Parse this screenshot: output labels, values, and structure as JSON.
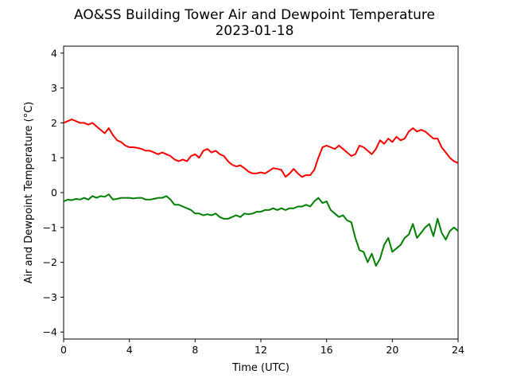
{
  "chart_data": {
    "type": "line",
    "title": "AO&SS Building Tower Air and Dewpoint Temperature",
    "subtitle": "2023-01-18",
    "xlabel": "Time (UTC)",
    "ylabel": "Air and Dewpoint Temperature (°C)",
    "xlim": [
      0,
      24
    ],
    "ylim": [
      -4.2,
      4.2
    ],
    "xticks": [
      0,
      4,
      8,
      12,
      16,
      20,
      24
    ],
    "yticks": [
      -4,
      -3,
      -2,
      -1,
      0,
      1,
      2,
      3,
      4
    ],
    "grid": false,
    "series": [
      {
        "color": "#ff0000",
        "x": [
          0,
          0.25,
          0.5,
          0.75,
          1.0,
          1.25,
          1.5,
          1.75,
          2.0,
          2.25,
          2.5,
          2.75,
          3.0,
          3.25,
          3.5,
          3.75,
          4.0,
          4.25,
          4.5,
          4.75,
          5.0,
          5.25,
          5.5,
          5.75,
          6.0,
          6.25,
          6.5,
          6.75,
          7.0,
          7.25,
          7.5,
          7.75,
          8.0,
          8.25,
          8.5,
          8.75,
          9.0,
          9.25,
          9.5,
          9.75,
          10.0,
          10.25,
          10.5,
          10.75,
          11.0,
          11.25,
          11.5,
          11.75,
          12.0,
          12.25,
          12.5,
          12.75,
          13.0,
          13.25,
          13.5,
          13.75,
          14.0,
          14.25,
          14.5,
          14.75,
          15.0,
          15.25,
          15.5,
          15.75,
          16.0,
          16.25,
          16.5,
          16.75,
          17.0,
          17.25,
          17.5,
          17.75,
          18.0,
          18.25,
          18.5,
          18.75,
          19.0,
          19.25,
          19.5,
          19.75,
          20.0,
          20.25,
          20.5,
          20.75,
          21.0,
          21.25,
          21.5,
          21.75,
          22.0,
          22.25,
          22.5,
          22.75,
          23.0,
          23.25,
          23.5,
          23.75,
          24.0
        ],
        "values": [
          2.0,
          2.05,
          2.1,
          2.05,
          2.0,
          2.0,
          1.95,
          2.0,
          1.9,
          1.8,
          1.7,
          1.85,
          1.65,
          1.5,
          1.45,
          1.35,
          1.3,
          1.3,
          1.28,
          1.25,
          1.2,
          1.2,
          1.15,
          1.1,
          1.15,
          1.1,
          1.05,
          0.95,
          0.9,
          0.95,
          0.9,
          1.05,
          1.1,
          1.0,
          1.2,
          1.25,
          1.15,
          1.2,
          1.1,
          1.05,
          0.9,
          0.8,
          0.75,
          0.78,
          0.7,
          0.6,
          0.55,
          0.55,
          0.58,
          0.55,
          0.62,
          0.7,
          0.68,
          0.65,
          0.45,
          0.55,
          0.68,
          0.55,
          0.45,
          0.5,
          0.5,
          0.65,
          1.0,
          1.3,
          1.35,
          1.3,
          1.25,
          1.35,
          1.25,
          1.15,
          1.05,
          1.1,
          1.35,
          1.3,
          1.2,
          1.1,
          1.25,
          1.5,
          1.4,
          1.55,
          1.45,
          1.6,
          1.5,
          1.55,
          1.75,
          1.85,
          1.75,
          1.8,
          1.75,
          1.65,
          1.55,
          1.55,
          1.3,
          1.15,
          1.0,
          0.9,
          0.85
        ]
      },
      {
        "color": "#008000",
        "x": [
          0,
          0.25,
          0.5,
          0.75,
          1.0,
          1.25,
          1.5,
          1.75,
          2.0,
          2.25,
          2.5,
          2.75,
          3.0,
          3.25,
          3.5,
          3.75,
          4.0,
          4.25,
          4.5,
          4.75,
          5.0,
          5.25,
          5.5,
          5.75,
          6.0,
          6.25,
          6.5,
          6.75,
          7.0,
          7.25,
          7.5,
          7.75,
          8.0,
          8.25,
          8.5,
          8.75,
          9.0,
          9.25,
          9.5,
          9.75,
          10.0,
          10.25,
          10.5,
          10.75,
          11.0,
          11.25,
          11.5,
          11.75,
          12.0,
          12.25,
          12.5,
          12.75,
          13.0,
          13.25,
          13.5,
          13.75,
          14.0,
          14.25,
          14.5,
          14.75,
          15.0,
          15.25,
          15.5,
          15.75,
          16.0,
          16.25,
          16.5,
          16.75,
          17.0,
          17.25,
          17.5,
          17.75,
          18.0,
          18.25,
          18.5,
          18.75,
          19.0,
          19.25,
          19.5,
          19.75,
          20.0,
          20.25,
          20.5,
          20.75,
          21.0,
          21.25,
          21.5,
          21.75,
          22.0,
          22.25,
          22.5,
          22.75,
          23.0,
          23.25,
          23.5,
          23.75,
          24.0
        ],
        "values": [
          -0.25,
          -0.2,
          -0.22,
          -0.18,
          -0.2,
          -0.15,
          -0.2,
          -0.1,
          -0.15,
          -0.1,
          -0.12,
          -0.05,
          -0.2,
          -0.18,
          -0.15,
          -0.15,
          -0.15,
          -0.17,
          -0.15,
          -0.15,
          -0.2,
          -0.2,
          -0.18,
          -0.15,
          -0.15,
          -0.1,
          -0.2,
          -0.35,
          -0.35,
          -0.4,
          -0.45,
          -0.5,
          -0.6,
          -0.6,
          -0.65,
          -0.62,
          -0.65,
          -0.6,
          -0.7,
          -0.75,
          -0.75,
          -0.7,
          -0.65,
          -0.7,
          -0.6,
          -0.62,
          -0.6,
          -0.55,
          -0.55,
          -0.5,
          -0.5,
          -0.45,
          -0.5,
          -0.45,
          -0.5,
          -0.45,
          -0.45,
          -0.4,
          -0.4,
          -0.35,
          -0.4,
          -0.25,
          -0.15,
          -0.3,
          -0.25,
          -0.5,
          -0.6,
          -0.7,
          -0.65,
          -0.8,
          -0.85,
          -1.3,
          -1.65,
          -1.7,
          -2.0,
          -1.75,
          -2.1,
          -1.9,
          -1.5,
          -1.3,
          -1.7,
          -1.6,
          -1.5,
          -1.3,
          -1.2,
          -0.9,
          -1.3,
          -1.15,
          -1.0,
          -0.9,
          -1.25,
          -0.75,
          -1.15,
          -1.35,
          -1.1,
          -1.0,
          -1.1
        ]
      }
    ]
  }
}
